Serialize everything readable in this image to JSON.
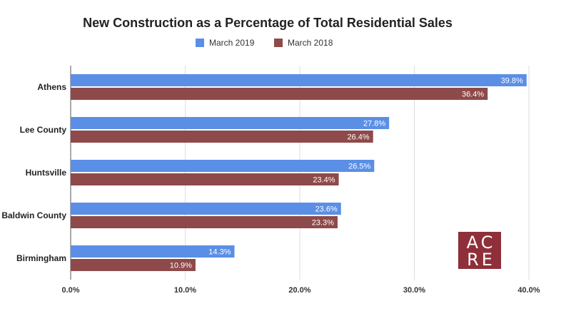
{
  "chart_data": {
    "type": "bar",
    "orientation": "horizontal",
    "title": "New Construction as a Percentage of Total Residential Sales",
    "categories": [
      "Athens",
      "Lee County",
      "Huntsville",
      "Baldwin County",
      "Birmingham"
    ],
    "series": [
      {
        "name": "March 2019",
        "color": "#5b8fe6",
        "values": [
          39.8,
          27.8,
          26.5,
          23.6,
          14.3
        ],
        "labels": [
          "39.8%",
          "27.8%",
          "26.5%",
          "23.6%",
          "14.3%"
        ]
      },
      {
        "name": "March 2018",
        "color": "#8e4a4a",
        "values": [
          36.4,
          26.4,
          23.4,
          23.3,
          10.9
        ],
        "labels": [
          "36.4%",
          "26.4%",
          "23.4%",
          "23.3%",
          "10.9%"
        ]
      }
    ],
    "xlim": [
      0,
      40
    ],
    "xticks": [
      0,
      10,
      20,
      30,
      40
    ],
    "xtick_labels": [
      "0.0%",
      "10.0%",
      "20.0%",
      "30.0%",
      "40.0%"
    ],
    "grid": true,
    "legend": "top-center"
  },
  "logo": {
    "line1": "AC",
    "line2": "RE",
    "color": "#8e2f3a"
  }
}
